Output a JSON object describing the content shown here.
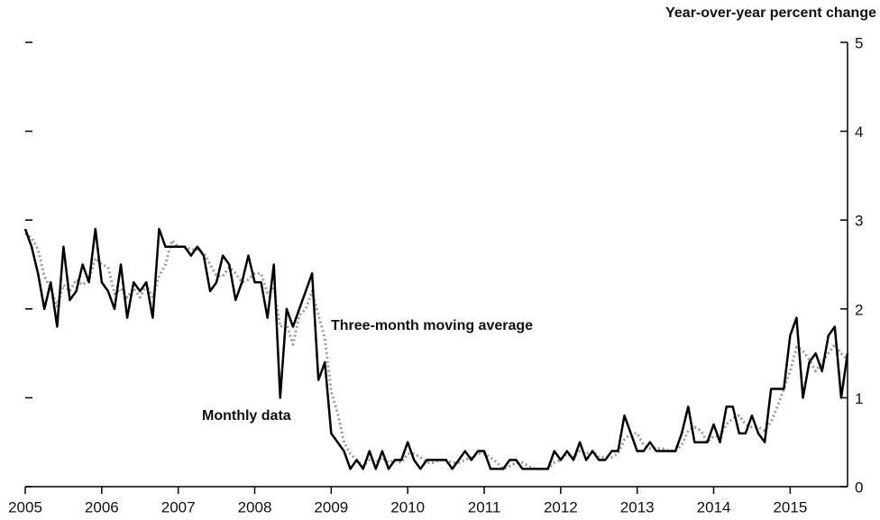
{
  "chart_data": {
    "type": "line",
    "y_label": "Year-over-year percent change",
    "annotations": [
      "Three-month moving average",
      "Monthly data"
    ],
    "x": [
      2005,
      2005.083,
      2005.167,
      2005.25,
      2005.333,
      2005.417,
      2005.5,
      2005.583,
      2005.667,
      2005.75,
      2005.833,
      2005.917,
      2006,
      2006.083,
      2006.167,
      2006.25,
      2006.333,
      2006.417,
      2006.5,
      2006.583,
      2006.667,
      2006.75,
      2006.833,
      2006.917,
      2007,
      2007.083,
      2007.167,
      2007.25,
      2007.333,
      2007.417,
      2007.5,
      2007.583,
      2007.667,
      2007.75,
      2007.833,
      2007.917,
      2008,
      2008.083,
      2008.167,
      2008.25,
      2008.333,
      2008.417,
      2008.5,
      2008.583,
      2008.667,
      2008.75,
      2008.833,
      2008.917,
      2009,
      2009.083,
      2009.167,
      2009.25,
      2009.333,
      2009.417,
      2009.5,
      2009.583,
      2009.667,
      2009.75,
      2009.833,
      2009.917,
      2010,
      2010.083,
      2010.167,
      2010.25,
      2010.333,
      2010.417,
      2010.5,
      2010.583,
      2010.667,
      2010.75,
      2010.833,
      2010.917,
      2011,
      2011.083,
      2011.167,
      2011.25,
      2011.333,
      2011.417,
      2011.5,
      2011.583,
      2011.667,
      2011.75,
      2011.833,
      2011.917,
      2012,
      2012.083,
      2012.167,
      2012.25,
      2012.333,
      2012.417,
      2012.5,
      2012.583,
      2012.667,
      2012.75,
      2012.833,
      2012.917,
      2013,
      2013.083,
      2013.167,
      2013.25,
      2013.333,
      2013.417,
      2013.5,
      2013.583,
      2013.667,
      2013.75,
      2013.833,
      2013.917,
      2014,
      2014.083,
      2014.167,
      2014.25,
      2014.333,
      2014.417,
      2014.5,
      2014.583,
      2014.667,
      2014.75,
      2014.833,
      2014.917,
      2015,
      2015.083,
      2015.167,
      2015.25,
      2015.333,
      2015.417,
      2015.5,
      2015.583,
      2015.667,
      2015.75
    ],
    "series": [
      {
        "name": "Monthly data",
        "color": "#000000",
        "style": "solid",
        "values": [
          2.9,
          2.7,
          2.4,
          2.0,
          2.3,
          1.8,
          2.7,
          2.1,
          2.2,
          2.5,
          2.3,
          2.9,
          2.3,
          2.2,
          2.0,
          2.5,
          1.9,
          2.3,
          2.2,
          2.3,
          1.9,
          2.9,
          2.7,
          2.7,
          2.7,
          2.7,
          2.6,
          2.7,
          2.6,
          2.2,
          2.3,
          2.6,
          2.5,
          2.1,
          2.3,
          2.6,
          2.3,
          2.3,
          1.9,
          2.5,
          1.0,
          2.0,
          1.8,
          2.0,
          2.2,
          2.4,
          1.2,
          1.4,
          0.6,
          0.5,
          0.4,
          0.2,
          0.3,
          0.2,
          0.4,
          0.2,
          0.4,
          0.2,
          0.3,
          0.3,
          0.5,
          0.3,
          0.2,
          0.3,
          0.3,
          0.3,
          0.3,
          0.2,
          0.3,
          0.4,
          0.3,
          0.4,
          0.4,
          0.2,
          0.2,
          0.2,
          0.3,
          0.3,
          0.2,
          0.2,
          0.2,
          0.2,
          0.2,
          0.4,
          0.3,
          0.4,
          0.3,
          0.5,
          0.3,
          0.4,
          0.3,
          0.3,
          0.4,
          0.4,
          0.8,
          0.6,
          0.4,
          0.4,
          0.5,
          0.4,
          0.4,
          0.4,
          0.4,
          0.6,
          0.9,
          0.5,
          0.5,
          0.5,
          0.7,
          0.5,
          0.9,
          0.9,
          0.6,
          0.6,
          0.8,
          0.6,
          0.5,
          1.1,
          1.1,
          1.1,
          1.7,
          1.9,
          1.0,
          1.4,
          1.5,
          1.3,
          1.7,
          1.8,
          1.0,
          1.5
        ]
      },
      {
        "name": "Three-month moving average",
        "color": "#999999",
        "style": "dotted",
        "values": [
          2.85,
          2.8,
          2.67,
          2.37,
          2.23,
          2.03,
          2.27,
          2.2,
          2.33,
          2.27,
          2.33,
          2.57,
          2.5,
          2.47,
          2.17,
          2.23,
          2.13,
          2.23,
          2.13,
          2.27,
          2.13,
          2.37,
          2.5,
          2.77,
          2.7,
          2.7,
          2.67,
          2.67,
          2.63,
          2.5,
          2.37,
          2.37,
          2.47,
          2.4,
          2.3,
          2.33,
          2.4,
          2.4,
          2.17,
          2.23,
          1.8,
          1.83,
          1.6,
          1.93,
          2.0,
          2.2,
          1.93,
          1.67,
          1.07,
          0.83,
          0.5,
          0.37,
          0.3,
          0.23,
          0.3,
          0.27,
          0.33,
          0.27,
          0.3,
          0.27,
          0.37,
          0.37,
          0.33,
          0.27,
          0.27,
          0.3,
          0.3,
          0.27,
          0.27,
          0.3,
          0.33,
          0.37,
          0.37,
          0.33,
          0.27,
          0.2,
          0.23,
          0.27,
          0.27,
          0.23,
          0.2,
          0.2,
          0.2,
          0.27,
          0.3,
          0.37,
          0.33,
          0.4,
          0.37,
          0.4,
          0.33,
          0.33,
          0.33,
          0.37,
          0.53,
          0.6,
          0.6,
          0.47,
          0.43,
          0.43,
          0.43,
          0.4,
          0.4,
          0.47,
          0.63,
          0.67,
          0.63,
          0.5,
          0.57,
          0.57,
          0.7,
          0.77,
          0.8,
          0.7,
          0.67,
          0.67,
          0.63,
          0.73,
          0.9,
          1.1,
          1.3,
          1.57,
          1.53,
          1.43,
          1.3,
          1.4,
          1.5,
          1.6,
          1.5,
          1.43
        ]
      }
    ],
    "xlim": [
      2005,
      2015.75
    ],
    "xticks": [
      2005,
      2006,
      2007,
      2008,
      2009,
      2010,
      2011,
      2012,
      2013,
      2014,
      2015
    ],
    "ylim": [
      0,
      5
    ],
    "yticks": [
      0,
      1,
      2,
      3,
      4,
      5
    ]
  }
}
